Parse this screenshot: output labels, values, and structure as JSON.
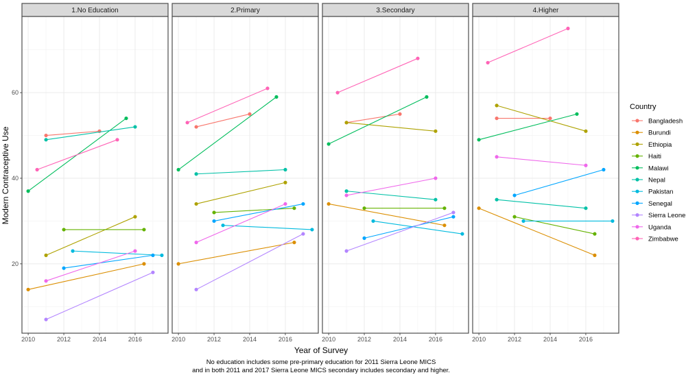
{
  "chart_data": {
    "type": "line",
    "title": "",
    "xlabel": "Year of Survey",
    "ylabel": "Modern Contraceptive Use",
    "caption": [
      "No education includes some pre-primary education for 2011 Sierra Leone MICS",
      "and in both 2011 and 2017 Sierra Leone MICS secondary includes secondary and higher."
    ],
    "xlim": [
      2009.65,
      2017.85
    ],
    "ylim": [
      3.8,
      77.8
    ],
    "x_ticks": [
      2010,
      2012,
      2014,
      2016
    ],
    "y_ticks": [
      20,
      40,
      60
    ],
    "grid": true,
    "legend": {
      "title": "Country",
      "position": "right",
      "entries": [
        {
          "name": "Bangladesh",
          "color": "#F8766D"
        },
        {
          "name": "Burundi",
          "color": "#DB8E00"
        },
        {
          "name": "Ethiopia",
          "color": "#AEA200"
        },
        {
          "name": "Haiti",
          "color": "#64B200"
        },
        {
          "name": "Malawi",
          "color": "#00BD5C"
        },
        {
          "name": "Nepal",
          "color": "#00C1A7"
        },
        {
          "name": "Pakistan",
          "color": "#00BADE"
        },
        {
          "name": "Senegal",
          "color": "#00A6FF"
        },
        {
          "name": "Sierra Leone",
          "color": "#B385FF"
        },
        {
          "name": "Uganda",
          "color": "#EF67EB"
        },
        {
          "name": "Zimbabwe",
          "color": "#FF63B6"
        }
      ]
    },
    "panels": [
      {
        "title": "1.No Education",
        "series": [
          {
            "name": "Bangladesh",
            "points": [
              [
                2011,
                50
              ],
              [
                2014,
                51
              ]
            ]
          },
          {
            "name": "Burundi",
            "points": [
              [
                2010,
                14
              ],
              [
                2016.5,
                20
              ]
            ]
          },
          {
            "name": "Ethiopia",
            "points": [
              [
                2011,
                22
              ],
              [
                2016,
                31
              ]
            ]
          },
          {
            "name": "Haiti",
            "points": [
              [
                2012,
                28
              ],
              [
                2016.5,
                28
              ]
            ]
          },
          {
            "name": "Malawi",
            "points": [
              [
                2010,
                37
              ],
              [
                2015.5,
                54
              ]
            ]
          },
          {
            "name": "Nepal",
            "points": [
              [
                2011,
                49
              ],
              [
                2016,
                52
              ]
            ]
          },
          {
            "name": "Pakistan",
            "points": [
              [
                2012.5,
                23
              ],
              [
                2017.5,
                22
              ]
            ]
          },
          {
            "name": "Senegal",
            "points": [
              [
                2012,
                19
              ],
              [
                2017,
                22
              ]
            ]
          },
          {
            "name": "Sierra Leone",
            "points": [
              [
                2011,
                7
              ],
              [
                2017,
                18
              ]
            ]
          },
          {
            "name": "Uganda",
            "points": [
              [
                2011,
                16
              ],
              [
                2016,
                23
              ]
            ]
          },
          {
            "name": "Zimbabwe",
            "points": [
              [
                2010.5,
                42
              ],
              [
                2015,
                49
              ]
            ]
          }
        ]
      },
      {
        "title": "2.Primary",
        "series": [
          {
            "name": "Bangladesh",
            "points": [
              [
                2011,
                52
              ],
              [
                2014,
                55
              ]
            ]
          },
          {
            "name": "Burundi",
            "points": [
              [
                2010,
                20
              ],
              [
                2016.5,
                25
              ]
            ]
          },
          {
            "name": "Ethiopia",
            "points": [
              [
                2011,
                34
              ],
              [
                2016,
                39
              ]
            ]
          },
          {
            "name": "Haiti",
            "points": [
              [
                2012,
                32
              ],
              [
                2016.5,
                33
              ]
            ]
          },
          {
            "name": "Malawi",
            "points": [
              [
                2010,
                42
              ],
              [
                2015.5,
                59
              ]
            ]
          },
          {
            "name": "Nepal",
            "points": [
              [
                2011,
                41
              ],
              [
                2016,
                42
              ]
            ]
          },
          {
            "name": "Pakistan",
            "points": [
              [
                2012.5,
                29
              ],
              [
                2017.5,
                28
              ]
            ]
          },
          {
            "name": "Senegal",
            "points": [
              [
                2012,
                30
              ],
              [
                2017,
                34
              ]
            ]
          },
          {
            "name": "Sierra Leone",
            "points": [
              [
                2011,
                14
              ],
              [
                2017,
                27
              ]
            ]
          },
          {
            "name": "Uganda",
            "points": [
              [
                2011,
                25
              ],
              [
                2016,
                34
              ]
            ]
          },
          {
            "name": "Zimbabwe",
            "points": [
              [
                2010.5,
                53
              ],
              [
                2015,
                61
              ]
            ]
          }
        ]
      },
      {
        "title": "3.Secondary",
        "series": [
          {
            "name": "Bangladesh",
            "points": [
              [
                2011,
                53
              ],
              [
                2014,
                55
              ]
            ]
          },
          {
            "name": "Burundi",
            "points": [
              [
                2010,
                34
              ],
              [
                2016.5,
                29
              ]
            ]
          },
          {
            "name": "Ethiopia",
            "points": [
              [
                2011,
                53
              ],
              [
                2016,
                51
              ]
            ]
          },
          {
            "name": "Haiti",
            "points": [
              [
                2012,
                33
              ],
              [
                2016.5,
                33
              ]
            ]
          },
          {
            "name": "Malawi",
            "points": [
              [
                2010,
                48
              ],
              [
                2015.5,
                59
              ]
            ]
          },
          {
            "name": "Nepal",
            "points": [
              [
                2011,
                37
              ],
              [
                2016,
                35
              ]
            ]
          },
          {
            "name": "Pakistan",
            "points": [
              [
                2012.5,
                30
              ],
              [
                2017.5,
                27
              ]
            ]
          },
          {
            "name": "Senegal",
            "points": [
              [
                2012,
                26
              ],
              [
                2017,
                31
              ]
            ]
          },
          {
            "name": "Sierra Leone",
            "points": [
              [
                2011,
                23
              ],
              [
                2017,
                32
              ]
            ]
          },
          {
            "name": "Uganda",
            "points": [
              [
                2011,
                36
              ],
              [
                2016,
                40
              ]
            ]
          },
          {
            "name": "Zimbabwe",
            "points": [
              [
                2010.5,
                60
              ],
              [
                2015,
                68
              ]
            ]
          }
        ]
      },
      {
        "title": "4.Higher",
        "series": [
          {
            "name": "Bangladesh",
            "points": [
              [
                2011,
                54
              ],
              [
                2014,
                54
              ]
            ]
          },
          {
            "name": "Burundi",
            "points": [
              [
                2010,
                33
              ],
              [
                2016.5,
                22
              ]
            ]
          },
          {
            "name": "Ethiopia",
            "points": [
              [
                2011,
                57
              ],
              [
                2016,
                51
              ]
            ]
          },
          {
            "name": "Haiti",
            "points": [
              [
                2012,
                31
              ],
              [
                2016.5,
                27
              ]
            ]
          },
          {
            "name": "Malawi",
            "points": [
              [
                2010,
                49
              ],
              [
                2015.5,
                55
              ]
            ]
          },
          {
            "name": "Nepal",
            "points": [
              [
                2011,
                35
              ],
              [
                2016,
                33
              ]
            ]
          },
          {
            "name": "Pakistan",
            "points": [
              [
                2012.5,
                30
              ],
              [
                2017.5,
                30
              ]
            ]
          },
          {
            "name": "Senegal",
            "points": [
              [
                2012,
                36
              ],
              [
                2017,
                42
              ]
            ]
          },
          {
            "name": "Uganda",
            "points": [
              [
                2011,
                45
              ],
              [
                2016,
                43
              ]
            ]
          },
          {
            "name": "Zimbabwe",
            "points": [
              [
                2010.5,
                67
              ],
              [
                2015,
                75
              ]
            ]
          }
        ]
      }
    ]
  }
}
